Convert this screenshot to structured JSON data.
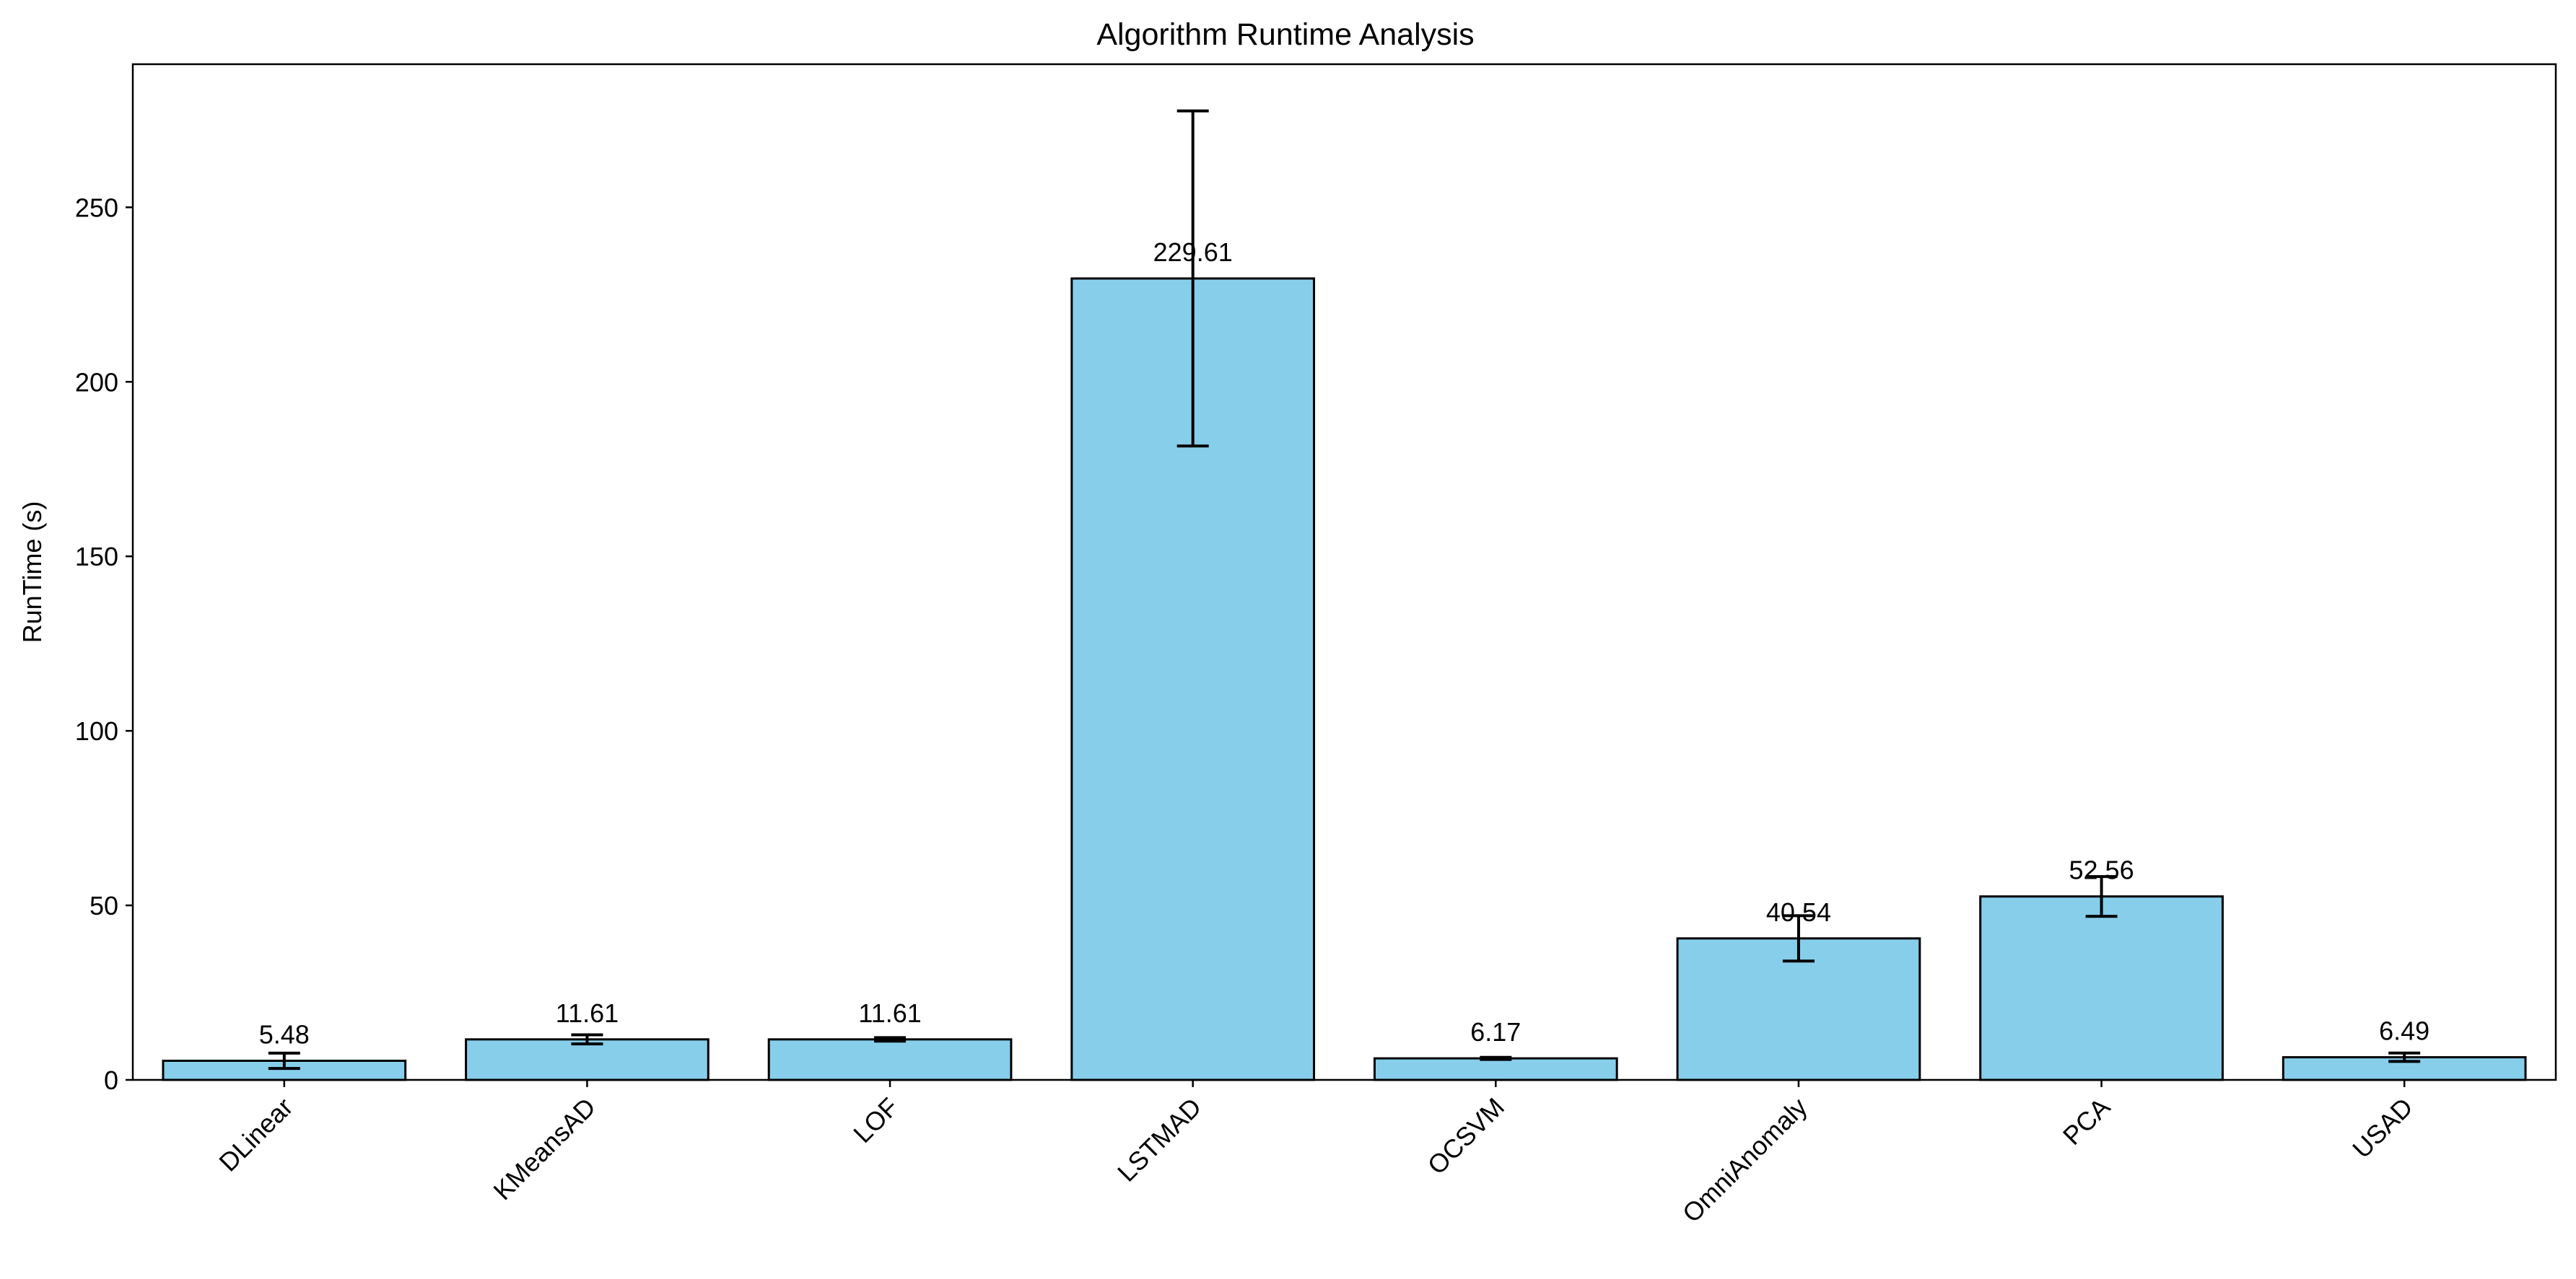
{
  "chart_data": {
    "type": "bar",
    "title": "Algorithm Runtime Analysis",
    "xlabel": "",
    "ylabel": "RunTime (s)",
    "categories": [
      "DLinear",
      "KMeansAD",
      "LOF",
      "LSTMAD",
      "OCSVM",
      "OmniAnomaly",
      "PCA",
      "USAD"
    ],
    "values": [
      5.48,
      11.61,
      11.61,
      229.61,
      6.17,
      40.54,
      52.56,
      6.49
    ],
    "value_labels": [
      "5.48",
      "11.61",
      "11.61",
      "229.61",
      "6.17",
      "40.54",
      "52.56",
      "6.49"
    ],
    "error": [
      2.2,
      1.3,
      0.5,
      48.0,
      0.3,
      6.5,
      5.7,
      1.2
    ],
    "ylim": [
      0,
      291
    ],
    "yticks": [
      0,
      50,
      100,
      150,
      200,
      250
    ],
    "ytick_labels": [
      "0",
      "50",
      "100",
      "150",
      "200",
      "250"
    ],
    "grid": false,
    "legend": "none",
    "colors": {
      "bar_fill": "#87CEEB",
      "bar_edge": "#000000",
      "error_bar": "#000000",
      "axes": "#000000"
    }
  }
}
